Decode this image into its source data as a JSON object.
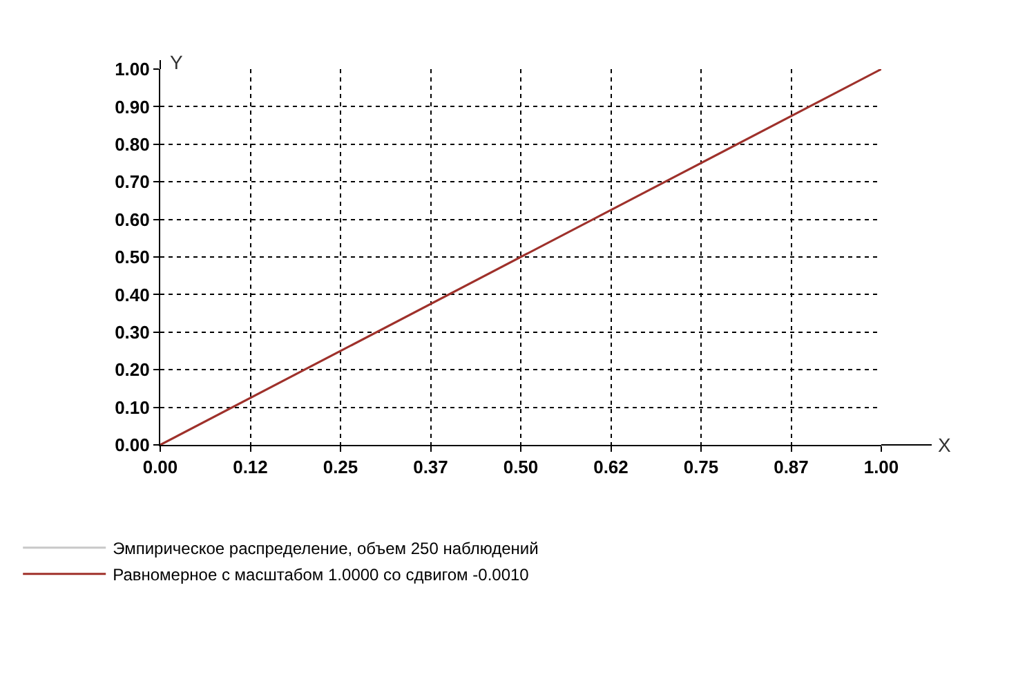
{
  "chart_data": {
    "type": "line",
    "xlabel": "X",
    "ylabel": "Y",
    "xlim": [
      0,
      1
    ],
    "xticks": [
      {
        "value": 0,
        "label": "0.00"
      },
      {
        "value": 0.125,
        "label": "0.12"
      },
      {
        "value": 0.25,
        "label": "0.25"
      },
      {
        "value": 0.375,
        "label": "0.37"
      },
      {
        "value": 0.5,
        "label": "0.50"
      },
      {
        "value": 0.625,
        "label": "0.62"
      },
      {
        "value": 0.75,
        "label": "0.75"
      },
      {
        "value": 0.875,
        "label": "0.87"
      },
      {
        "value": 1,
        "label": "1.00"
      }
    ],
    "ylim": [
      0,
      1
    ],
    "yticks": [
      {
        "value": 0,
        "label": "0.00"
      },
      {
        "value": 0.1,
        "label": "0.10"
      },
      {
        "value": 0.2,
        "label": "0.20"
      },
      {
        "value": 0.3,
        "label": "0.30"
      },
      {
        "value": 0.4,
        "label": "0.40"
      },
      {
        "value": 0.5,
        "label": "0.50"
      },
      {
        "value": 0.6,
        "label": "0.60"
      },
      {
        "value": 0.7,
        "label": "0.70"
      },
      {
        "value": 0.8,
        "label": "0.80"
      },
      {
        "value": 0.9,
        "label": "0.90"
      },
      {
        "value": 1,
        "label": "1.00"
      }
    ],
    "grid": true,
    "legend": "bottom left",
    "marker": "none",
    "line_style": "solid",
    "series": [
      {
        "name": "Эмпирическое распределение, объем 250 наблюдений",
        "color": "#c8c8c8",
        "x": [
          0,
          0.25,
          0.5,
          0.75,
          1
        ],
        "values": [
          0,
          0.25,
          0.5,
          0.75,
          1
        ]
      },
      {
        "name": "Равномерное с масштабом 1.0000 со сдвигом -0.0010",
        "color": "#a0302a",
        "x": [
          0,
          1
        ],
        "values": [
          0,
          1
        ]
      }
    ]
  }
}
